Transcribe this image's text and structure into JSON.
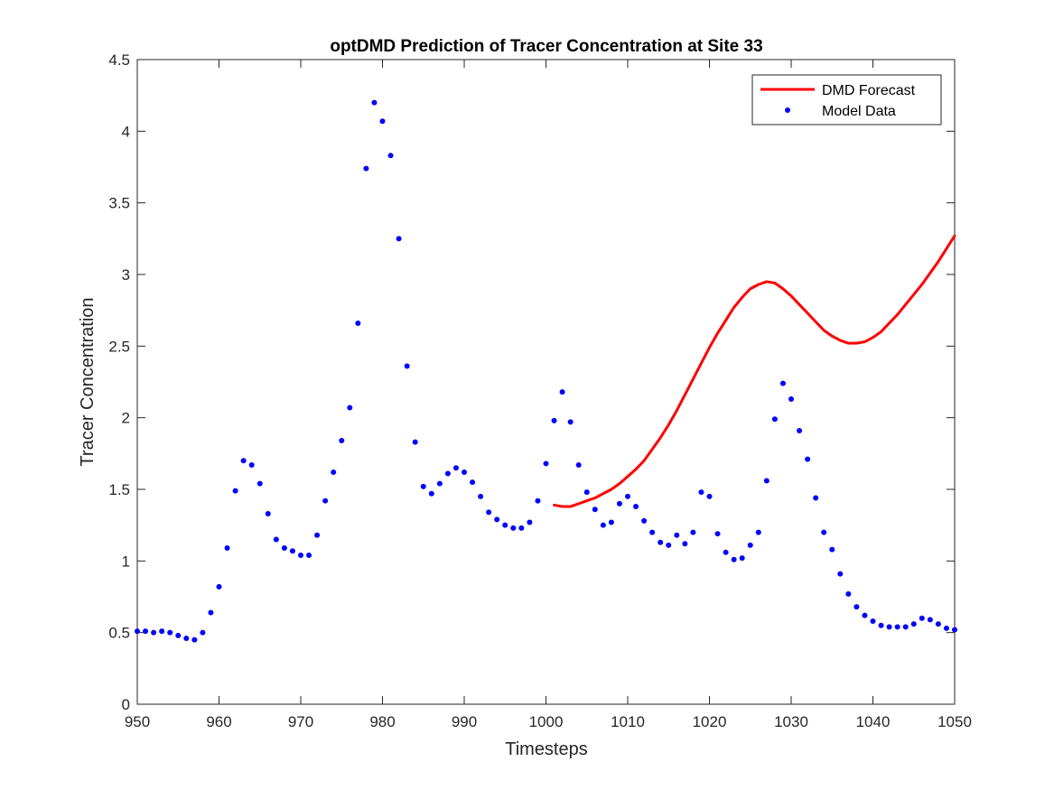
{
  "chart_data": {
    "type": "scatter",
    "title": "optDMD Prediction of Tracer Concentration at Site 33",
    "xlabel": "Timesteps",
    "ylabel": "Tracer Concentration",
    "xlim": [
      950,
      1050
    ],
    "ylim": [
      0,
      4.5
    ],
    "xticks": [
      950,
      960,
      970,
      980,
      990,
      1000,
      1010,
      1020,
      1030,
      1040,
      1050
    ],
    "yticks": [
      0,
      0.5,
      1,
      1.5,
      2,
      2.5,
      3,
      3.5,
      4,
      4.5
    ],
    "grid": false,
    "legend_position": "top-right",
    "series": [
      {
        "name": "DMD Forecast",
        "kind": "line",
        "color": "#ff0000",
        "x": [
          1001,
          1002,
          1003,
          1004,
          1005,
          1006,
          1007,
          1008,
          1009,
          1010,
          1011,
          1012,
          1013,
          1014,
          1015,
          1016,
          1017,
          1018,
          1019,
          1020,
          1021,
          1022,
          1023,
          1024,
          1025,
          1026,
          1027,
          1028,
          1029,
          1030,
          1031,
          1032,
          1033,
          1034,
          1035,
          1036,
          1037,
          1038,
          1039,
          1040,
          1041,
          1042,
          1043,
          1044,
          1045,
          1046,
          1047,
          1048,
          1049,
          1050
        ],
        "y": [
          1.39,
          1.38,
          1.38,
          1.4,
          1.42,
          1.44,
          1.47,
          1.5,
          1.54,
          1.59,
          1.64,
          1.7,
          1.78,
          1.86,
          1.95,
          2.05,
          2.16,
          2.27,
          2.38,
          2.49,
          2.59,
          2.68,
          2.77,
          2.84,
          2.9,
          2.93,
          2.95,
          2.94,
          2.9,
          2.85,
          2.79,
          2.73,
          2.67,
          2.61,
          2.57,
          2.54,
          2.52,
          2.52,
          2.53,
          2.56,
          2.6,
          2.66,
          2.72,
          2.79,
          2.86,
          2.93,
          3.01,
          3.09,
          3.18,
          3.27
        ]
      },
      {
        "name": "Model Data",
        "kind": "points",
        "color": "#0000ff",
        "x": [
          950,
          951,
          952,
          953,
          954,
          955,
          956,
          957,
          958,
          959,
          960,
          961,
          962,
          963,
          964,
          965,
          966,
          967,
          968,
          969,
          970,
          971,
          972,
          973,
          974,
          975,
          976,
          977,
          978,
          979,
          980,
          981,
          982,
          983,
          984,
          985,
          986,
          987,
          988,
          989,
          990,
          991,
          992,
          993,
          994,
          995,
          996,
          997,
          998,
          999,
          1000,
          1001,
          1002,
          1003,
          1004,
          1005,
          1006,
          1007,
          1008,
          1009,
          1010,
          1011,
          1012,
          1013,
          1014,
          1015,
          1016,
          1017,
          1018,
          1019,
          1020,
          1021,
          1022,
          1023,
          1024,
          1025,
          1026,
          1027,
          1028,
          1029,
          1030,
          1031,
          1032,
          1033,
          1034,
          1035,
          1036,
          1037,
          1038,
          1039,
          1040,
          1041,
          1042,
          1043,
          1044,
          1045,
          1046,
          1047,
          1048,
          1049,
          1050
        ],
        "y": [
          0.51,
          0.51,
          0.5,
          0.51,
          0.5,
          0.48,
          0.46,
          0.45,
          0.5,
          0.64,
          0.82,
          1.09,
          1.49,
          1.7,
          1.67,
          1.54,
          1.33,
          1.15,
          1.09,
          1.07,
          1.04,
          1.04,
          1.18,
          1.42,
          1.62,
          1.84,
          2.07,
          2.66,
          3.74,
          4.2,
          4.07,
          3.83,
          3.25,
          2.36,
          1.83,
          1.52,
          1.47,
          1.54,
          1.61,
          1.65,
          1.62,
          1.55,
          1.45,
          1.34,
          1.29,
          1.25,
          1.23,
          1.23,
          1.27,
          1.42,
          1.68,
          1.98,
          2.18,
          1.97,
          1.67,
          1.48,
          1.36,
          1.25,
          1.27,
          1.4,
          1.45,
          1.38,
          1.28,
          1.2,
          1.13,
          1.11,
          1.18,
          1.12,
          1.2,
          1.48,
          1.45,
          1.19,
          1.06,
          1.01,
          1.02,
          1.11,
          1.2,
          1.56,
          1.99,
          2.24,
          2.13,
          1.91,
          1.71,
          1.44,
          1.2,
          1.08,
          0.91,
          0.77,
          0.68,
          0.62,
          0.58,
          0.55,
          0.54,
          0.54,
          0.54,
          0.56,
          0.6,
          0.59,
          0.56,
          0.53,
          0.52
        ]
      }
    ]
  }
}
